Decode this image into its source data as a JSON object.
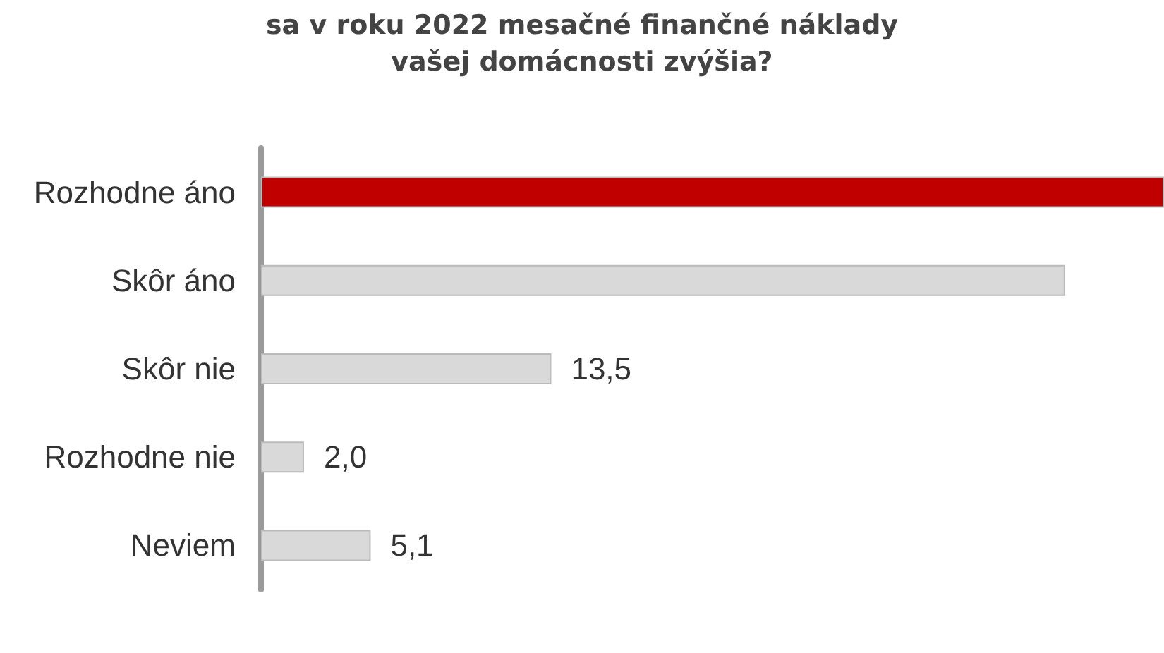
{
  "chart_data": {
    "type": "bar",
    "orientation": "horizontal",
    "title": "sa v roku 2022 mesačné finančné náklady\nvašej domácnosti zvýšia?",
    "categories": [
      "Rozhodne áno",
      "Skôr áno",
      "Skôr nie",
      "Rozhodne nie",
      "Neviem"
    ],
    "values": [
      42.0,
      37.4,
      13.5,
      2.0,
      5.1
    ],
    "value_labels": [
      null,
      null,
      "13,5",
      "2,0",
      "5,1"
    ],
    "colors": [
      "#c00000",
      "#d9d9d9",
      "#d9d9d9",
      "#d9d9d9",
      "#d9d9d9"
    ]
  }
}
